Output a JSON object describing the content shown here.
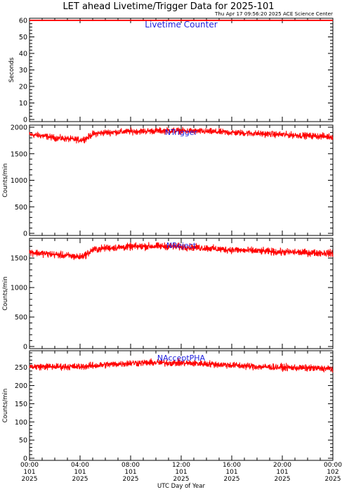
{
  "header": {
    "title": "LET ahead Livetime/Trigger Data for 2025-101",
    "timestamp": "Thu Apr 17 09:56:20 2025 ACE Science Center"
  },
  "colors": {
    "trace": "#ff0000",
    "panel_label": "#2222dd",
    "axis": "#000000",
    "background": "#ffffff"
  },
  "x_axis": {
    "xlabel": "UTC Day of Year",
    "ticks": [
      {
        "hours": 0,
        "time": "00:00",
        "doy": "101",
        "year": "2025"
      },
      {
        "hours": 4,
        "time": "04:00",
        "doy": "101",
        "year": "2025"
      },
      {
        "hours": 8,
        "time": "08:00",
        "doy": "101",
        "year": "2025"
      },
      {
        "hours": 12,
        "time": "12:00",
        "doy": "101",
        "year": "2025"
      },
      {
        "hours": 16,
        "time": "16:00",
        "doy": "101",
        "year": "2025"
      },
      {
        "hours": 20,
        "time": "20:00",
        "doy": "101",
        "year": "2025"
      },
      {
        "hours": 24,
        "time": "00:00",
        "doy": "102",
        "year": "2025"
      }
    ]
  },
  "chart_data": [
    {
      "type": "line",
      "panel_label": "Livetime Counter",
      "ylabel": "Seconds",
      "ylim": [
        0,
        60
      ],
      "yticks": [
        0,
        10,
        20,
        30,
        40,
        50,
        60
      ],
      "xlim": [
        0,
        24
      ],
      "series": [
        {
          "x": [
            0,
            24
          ],
          "values": [
            60,
            60
          ]
        }
      ]
    },
    {
      "type": "line",
      "panel_label": "NTrigger",
      "ylabel": "Counts/min",
      "ylim": [
        0,
        2000
      ],
      "yticks": [
        0,
        500,
        1000,
        1500,
        2000
      ],
      "xlim": [
        0,
        24
      ],
      "series": [
        {
          "x": [
            0,
            1,
            2,
            3,
            4,
            4.5,
            5,
            6,
            7,
            8,
            9,
            10,
            11,
            12,
            13,
            14,
            15,
            16,
            17,
            18,
            19,
            20,
            21,
            22,
            23,
            24
          ],
          "values": [
            1860,
            1840,
            1800,
            1780,
            1760,
            1790,
            1870,
            1900,
            1910,
            1920,
            1925,
            1930,
            1935,
            1930,
            1925,
            1920,
            1910,
            1900,
            1890,
            1880,
            1870,
            1860,
            1850,
            1840,
            1830,
            1820
          ],
          "noise": 90
        }
      ]
    },
    {
      "type": "line",
      "panel_label": "NReject",
      "ylabel": "Counts/min",
      "ylim": [
        0,
        1800
      ],
      "yticks": [
        0,
        500,
        1000,
        1500
      ],
      "xlim": [
        0,
        24
      ],
      "series": [
        {
          "x": [
            0,
            1,
            2,
            3,
            4,
            4.5,
            5,
            6,
            7,
            8,
            9,
            10,
            11,
            12,
            13,
            14,
            15,
            16,
            17,
            18,
            19,
            20,
            21,
            22,
            23,
            24
          ],
          "values": [
            1600,
            1580,
            1560,
            1540,
            1520,
            1560,
            1640,
            1670,
            1680,
            1690,
            1700,
            1700,
            1700,
            1690,
            1680,
            1670,
            1650,
            1640,
            1630,
            1620,
            1610,
            1600,
            1600,
            1590,
            1590,
            1580
          ],
          "noise": 90
        }
      ]
    },
    {
      "type": "line",
      "panel_label": "NAcceptPHA",
      "ylabel": "Counts/min",
      "ylim": [
        0,
        290
      ],
      "yticks": [
        0,
        50,
        100,
        150,
        200,
        250
      ],
      "xlim": [
        0,
        24
      ],
      "series": [
        {
          "x": [
            0,
            2,
            4,
            6,
            8,
            10,
            12,
            14,
            16,
            18,
            20,
            22,
            24
          ],
          "values": [
            252,
            252,
            252,
            257,
            262,
            263,
            262,
            260,
            256,
            252,
            250,
            248,
            246
          ],
          "noise": 14
        }
      ]
    }
  ]
}
